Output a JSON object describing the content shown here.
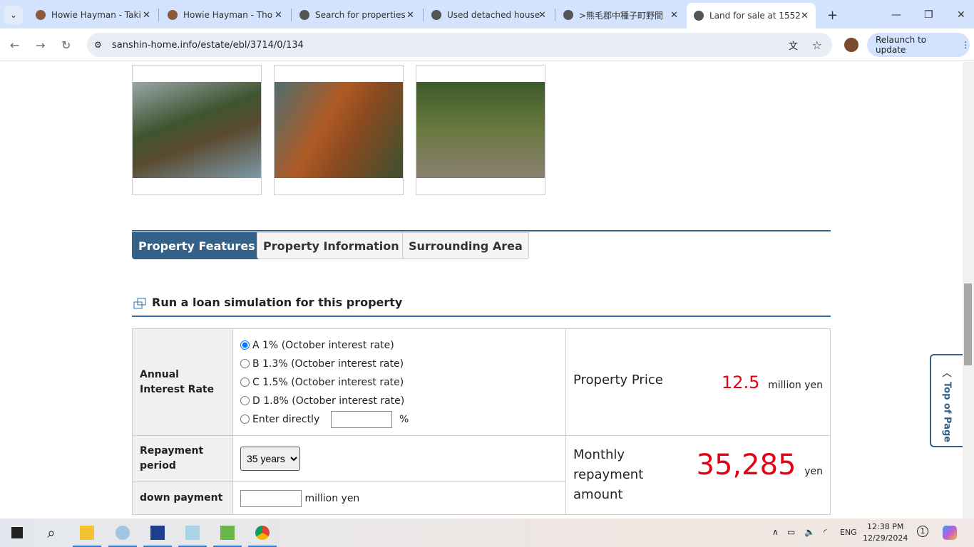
{
  "browser": {
    "tabs": [
      {
        "title": "Howie Hayman - Taki",
        "icon": "avatar-favicon"
      },
      {
        "title": "Howie Hayman - Tho",
        "icon": "avatar-favicon"
      },
      {
        "title": "Search for properties",
        "icon": "globe-icon"
      },
      {
        "title": "Used detached house",
        "icon": "globe-icon"
      },
      {
        "title": ">熊毛郡中種子町野間",
        "icon": "globe-icon"
      },
      {
        "title": "Land for sale at 1552",
        "icon": "globe-icon",
        "active": true
      }
    ],
    "url": "sanshin-home.info/estate/ebl/3714/0/134",
    "relaunch": "Relaunch to update"
  },
  "page": {
    "tabs": [
      "Property Features",
      "Property Information",
      "Surrounding Area"
    ],
    "active_tab": "Property Features",
    "sim_title": "Run a loan simulation for this property",
    "interest": {
      "label": "Annual Interest Rate",
      "options": [
        "A 1% (October interest rate)",
        "B 1.3% (October interest rate)",
        "C 1.5% (October interest rate)",
        "D 1.8% (October interest rate)"
      ],
      "selected": 0,
      "direct_label": "Enter directly",
      "direct_value": "",
      "percent": "%"
    },
    "price": {
      "label": "Property Price",
      "value": "12.5",
      "unit": "million yen"
    },
    "repayment": {
      "label": "Repayment period",
      "value": "35 years"
    },
    "down": {
      "label": "down payment",
      "value": "",
      "unit": "million yen"
    },
    "monthly": {
      "label": "Monthly repayment amount",
      "value": "35,285",
      "unit": "yen"
    },
    "top_of_page": "Top of Page"
  },
  "taskbar": {
    "time": "12:38 PM",
    "date": "12/29/2024",
    "lang": "ENG",
    "notifications": "1"
  },
  "colors": {
    "accent": "#336188",
    "price": "#e60012"
  }
}
